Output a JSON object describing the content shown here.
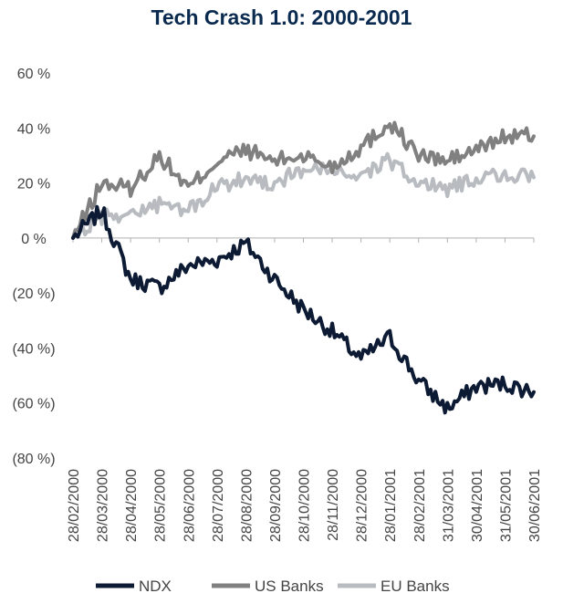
{
  "chart_data": {
    "type": "line",
    "title": "Tech Crash 1.0: 2000-2001",
    "xlabel": "",
    "ylabel": "",
    "ylim": [
      -80,
      60
    ],
    "y_ticks": [
      {
        "value": 60,
        "label": "60 %"
      },
      {
        "value": 40,
        "label": "40 %"
      },
      {
        "value": 20,
        "label": "20 %"
      },
      {
        "value": 0,
        "label": "0 %"
      },
      {
        "value": -20,
        "label": "(20 %)"
      },
      {
        "value": -40,
        "label": "(40 %)"
      },
      {
        "value": -60,
        "label": "(60 %)"
      },
      {
        "value": -80,
        "label": "(80 %)"
      }
    ],
    "x": [
      "28/02/2000",
      "28/03/2000",
      "28/04/2000",
      "28/05/2000",
      "28/06/2000",
      "28/07/2000",
      "28/08/2000",
      "28/09/2000",
      "28/10/2000",
      "28/11/2000",
      "28/12/2000",
      "28/01/2001",
      "28/02/2001",
      "31/03/2001",
      "30/04/2001",
      "31/05/2001",
      "30/06/2001"
    ],
    "grid": false,
    "legend": "bottom",
    "series": [
      {
        "name": "NDX",
        "color": "#0c1a33",
        "values": [
          0,
          10,
          -15,
          -18,
          -10,
          -8,
          -2,
          -15,
          -26,
          -34,
          -44,
          -36,
          -52,
          -62,
          -54,
          -53,
          -56
        ]
      },
      {
        "name": "US Banks",
        "color": "#808080",
        "values": [
          0,
          20,
          18,
          30,
          18,
          28,
          32,
          28,
          30,
          26,
          33,
          42,
          30,
          28,
          32,
          37,
          37
        ]
      },
      {
        "name": "EU Banks",
        "color": "#b8bcc1",
        "values": [
          0,
          8,
          9,
          12,
          10,
          18,
          22,
          20,
          25,
          24,
          23,
          28,
          20,
          18,
          22,
          23,
          22
        ]
      }
    ]
  }
}
